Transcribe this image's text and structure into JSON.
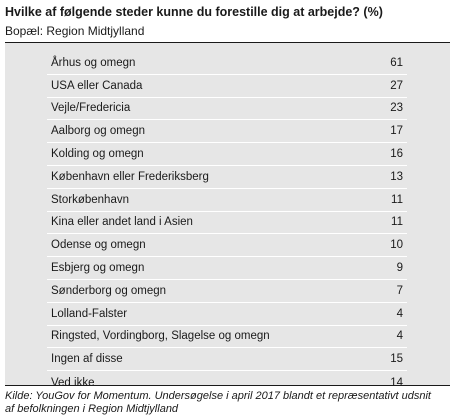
{
  "title": "Hvilke af følgende steder kunne du forestille dig at arbejde? (%)",
  "subtitle": "Bopæl: Region Midtjylland",
  "chart_data": {
    "type": "table",
    "rows": [
      {
        "label": "Århus og omegn",
        "value": "61"
      },
      {
        "label": "USA eller Canada",
        "value": "27"
      },
      {
        "label": "Vejle/Fredericia",
        "value": "23"
      },
      {
        "label": "Aalborg og omegn",
        "value": "17"
      },
      {
        "label": "Kolding og omegn",
        "value": "16"
      },
      {
        "label": "København eller Frederiksberg",
        "value": "13"
      },
      {
        "label": "Storkøbenhavn",
        "value": "11"
      },
      {
        "label": "Kina eller andet land i Asien",
        "value": "11"
      },
      {
        "label": "Odense og omegn",
        "value": "10"
      },
      {
        "label": "Esbjerg og omegn",
        "value": "9"
      },
      {
        "label": "Sønderborg og omegn",
        "value": "7"
      },
      {
        "label": "Lolland-Falster",
        "value": "4"
      },
      {
        "label": "Ringsted, Vordingborg, Slagelse og omegn",
        "value": "4"
      },
      {
        "label": "Ingen af disse",
        "value": "15"
      },
      {
        "label": "Ved ikke",
        "value": "14"
      }
    ]
  },
  "source_line1": "Kilde: YouGov for Momentum. Undersøgelse i april 2017 blandt et repræsentativt udsnit",
  "source_line2": "af befolkningen i Region Midtjylland"
}
